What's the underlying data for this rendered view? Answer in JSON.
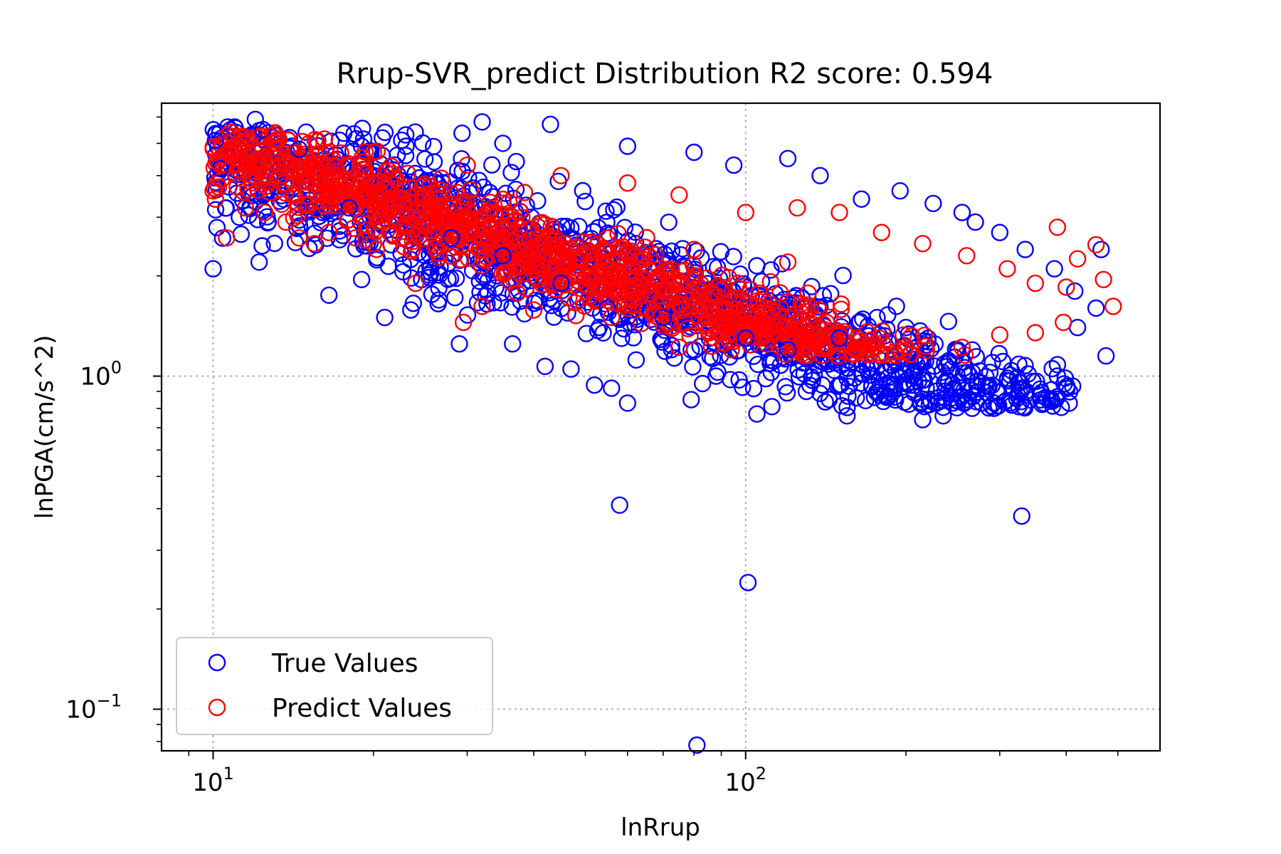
{
  "chart_data": {
    "type": "scatter",
    "title": "Rrup-SVR_predict Distribution R2 score: 0.594",
    "xlabel": "lnRrup",
    "ylabel": "lnPGA(cm/s^2)",
    "xscale": "log",
    "yscale": "log",
    "xlim": [
      8.0,
      600
    ],
    "ylim": [
      0.075,
      6.6
    ],
    "grid": true,
    "legend_position": "lower-left",
    "x_major_ticks": [
      {
        "value": 10,
        "base": "10",
        "exp": "1"
      },
      {
        "value": 100,
        "base": "10",
        "exp": "2"
      }
    ],
    "y_major_ticks": [
      {
        "value": 0.1,
        "base": "10",
        "exp": "−1"
      },
      {
        "value": 1,
        "base": "10",
        "exp": "0"
      }
    ],
    "series": [
      {
        "name": "True Values",
        "color": "#0000ff",
        "marker": "open-circle",
        "points": [
          [
            12.0,
            5.9
          ],
          [
            12.4,
            5.5
          ],
          [
            10.1,
            5.1
          ],
          [
            10.3,
            4.2
          ],
          [
            11.2,
            3.0
          ],
          [
            12.2,
            2.2
          ],
          [
            10.0,
            2.1
          ],
          [
            16.5,
            1.75
          ],
          [
            19.0,
            1.95
          ],
          [
            21.0,
            1.5
          ],
          [
            23.5,
            1.58
          ],
          [
            29.0,
            1.25
          ],
          [
            36.5,
            1.25
          ],
          [
            42.0,
            1.07
          ],
          [
            47.0,
            1.05
          ],
          [
            52.0,
            0.94
          ],
          [
            56.0,
            0.92
          ],
          [
            60.0,
            0.83
          ],
          [
            79.0,
            0.85
          ],
          [
            83.0,
            0.95
          ],
          [
            88.0,
            1.0
          ],
          [
            105.0,
            0.77
          ],
          [
            112.0,
            0.81
          ],
          [
            130.0,
            0.9
          ],
          [
            155.0,
            0.76
          ],
          [
            180.0,
            0.92
          ],
          [
            215.0,
            0.74
          ],
          [
            235.0,
            0.76
          ],
          [
            262.0,
            0.85
          ],
          [
            310.0,
            0.97
          ],
          [
            330.0,
            0.91
          ],
          [
            385.0,
            1.0
          ],
          [
            455.0,
            1.6
          ],
          [
            475.0,
            1.15
          ],
          [
            465.0,
            2.4
          ],
          [
            58.0,
            0.41
          ],
          [
            101.0,
            0.24
          ],
          [
            330.0,
            0.38
          ],
          [
            81.0,
            0.078
          ],
          [
            32.0,
            5.8
          ],
          [
            43.0,
            5.7
          ],
          [
            23.0,
            5.3
          ],
          [
            35.0,
            5.0
          ],
          [
            60.0,
            4.9
          ],
          [
            80.0,
            4.7
          ],
          [
            95.0,
            4.3
          ],
          [
            120.0,
            4.5
          ],
          [
            138.0,
            4.0
          ],
          [
            165.0,
            3.4
          ],
          [
            195.0,
            3.6
          ],
          [
            225.0,
            3.3
          ],
          [
            255.0,
            3.1
          ],
          [
            270.0,
            2.9
          ],
          [
            300.0,
            2.7
          ],
          [
            335.0,
            2.4
          ],
          [
            380.0,
            2.1
          ],
          [
            415.0,
            1.8
          ],
          [
            420.0,
            1.4
          ],
          [
            250.0,
            1.2
          ],
          [
            200.0,
            1.4
          ],
          [
            150.0,
            1.3
          ],
          [
            120.0,
            1.2
          ],
          [
            100.0,
            1.3
          ],
          [
            70.0,
            1.5
          ],
          [
            55.0,
            1.6
          ],
          [
            45.0,
            1.9
          ],
          [
            35.0,
            2.3
          ],
          [
            28.0,
            2.6
          ],
          [
            18.0,
            3.2
          ],
          [
            14.5,
            4.8
          ],
          [
            26.0,
            4.4
          ]
        ]
      },
      {
        "name": "Predict Values",
        "color": "#ff0000",
        "marker": "open-circle",
        "points": [
          [
            10.0,
            3.6
          ],
          [
            10.1,
            3.4
          ],
          [
            10.2,
            4.4
          ],
          [
            10.6,
            2.6
          ],
          [
            11.5,
            3.2
          ],
          [
            12.5,
            3.1
          ],
          [
            13.0,
            5.3
          ],
          [
            13.7,
            2.9
          ],
          [
            14.5,
            2.6
          ],
          [
            15.5,
            2.5
          ],
          [
            16.5,
            2.7
          ],
          [
            18.5,
            2.6
          ],
          [
            20.0,
            2.5
          ],
          [
            24.0,
            1.9
          ],
          [
            29.5,
            1.45
          ],
          [
            32.0,
            1.62
          ],
          [
            40.0,
            1.58
          ],
          [
            48.0,
            1.52
          ],
          [
            56.0,
            1.5
          ],
          [
            60.0,
            1.6
          ],
          [
            75.0,
            1.22
          ],
          [
            90.0,
            1.36
          ],
          [
            108.0,
            1.35
          ],
          [
            130.0,
            1.31
          ],
          [
            162.0,
            1.3
          ],
          [
            205.0,
            1.32
          ],
          [
            255.0,
            1.22
          ],
          [
            300.0,
            1.33
          ],
          [
            350.0,
            1.35
          ],
          [
            395.0,
            1.45
          ],
          [
            385.0,
            2.8
          ],
          [
            420.0,
            2.25
          ],
          [
            455.0,
            2.48
          ],
          [
            470.0,
            1.95
          ],
          [
            490.0,
            1.62
          ],
          [
            20.0,
            4.7
          ],
          [
            30.0,
            4.3
          ],
          [
            45.0,
            4.0
          ],
          [
            60.0,
            3.8
          ],
          [
            75.0,
            3.5
          ],
          [
            100.0,
            3.1
          ],
          [
            125.0,
            3.2
          ],
          [
            150.0,
            3.1
          ],
          [
            180.0,
            2.7
          ],
          [
            215.0,
            2.5
          ],
          [
            260.0,
            2.3
          ],
          [
            310.0,
            2.1
          ],
          [
            350.0,
            1.9
          ],
          [
            400.0,
            1.85
          ],
          [
            120.0,
            2.2
          ],
          [
            80.0,
            2.4
          ],
          [
            55.0,
            2.6
          ],
          [
            38.0,
            3.0
          ],
          [
            25.0,
            3.5
          ]
        ]
      }
    ]
  }
}
